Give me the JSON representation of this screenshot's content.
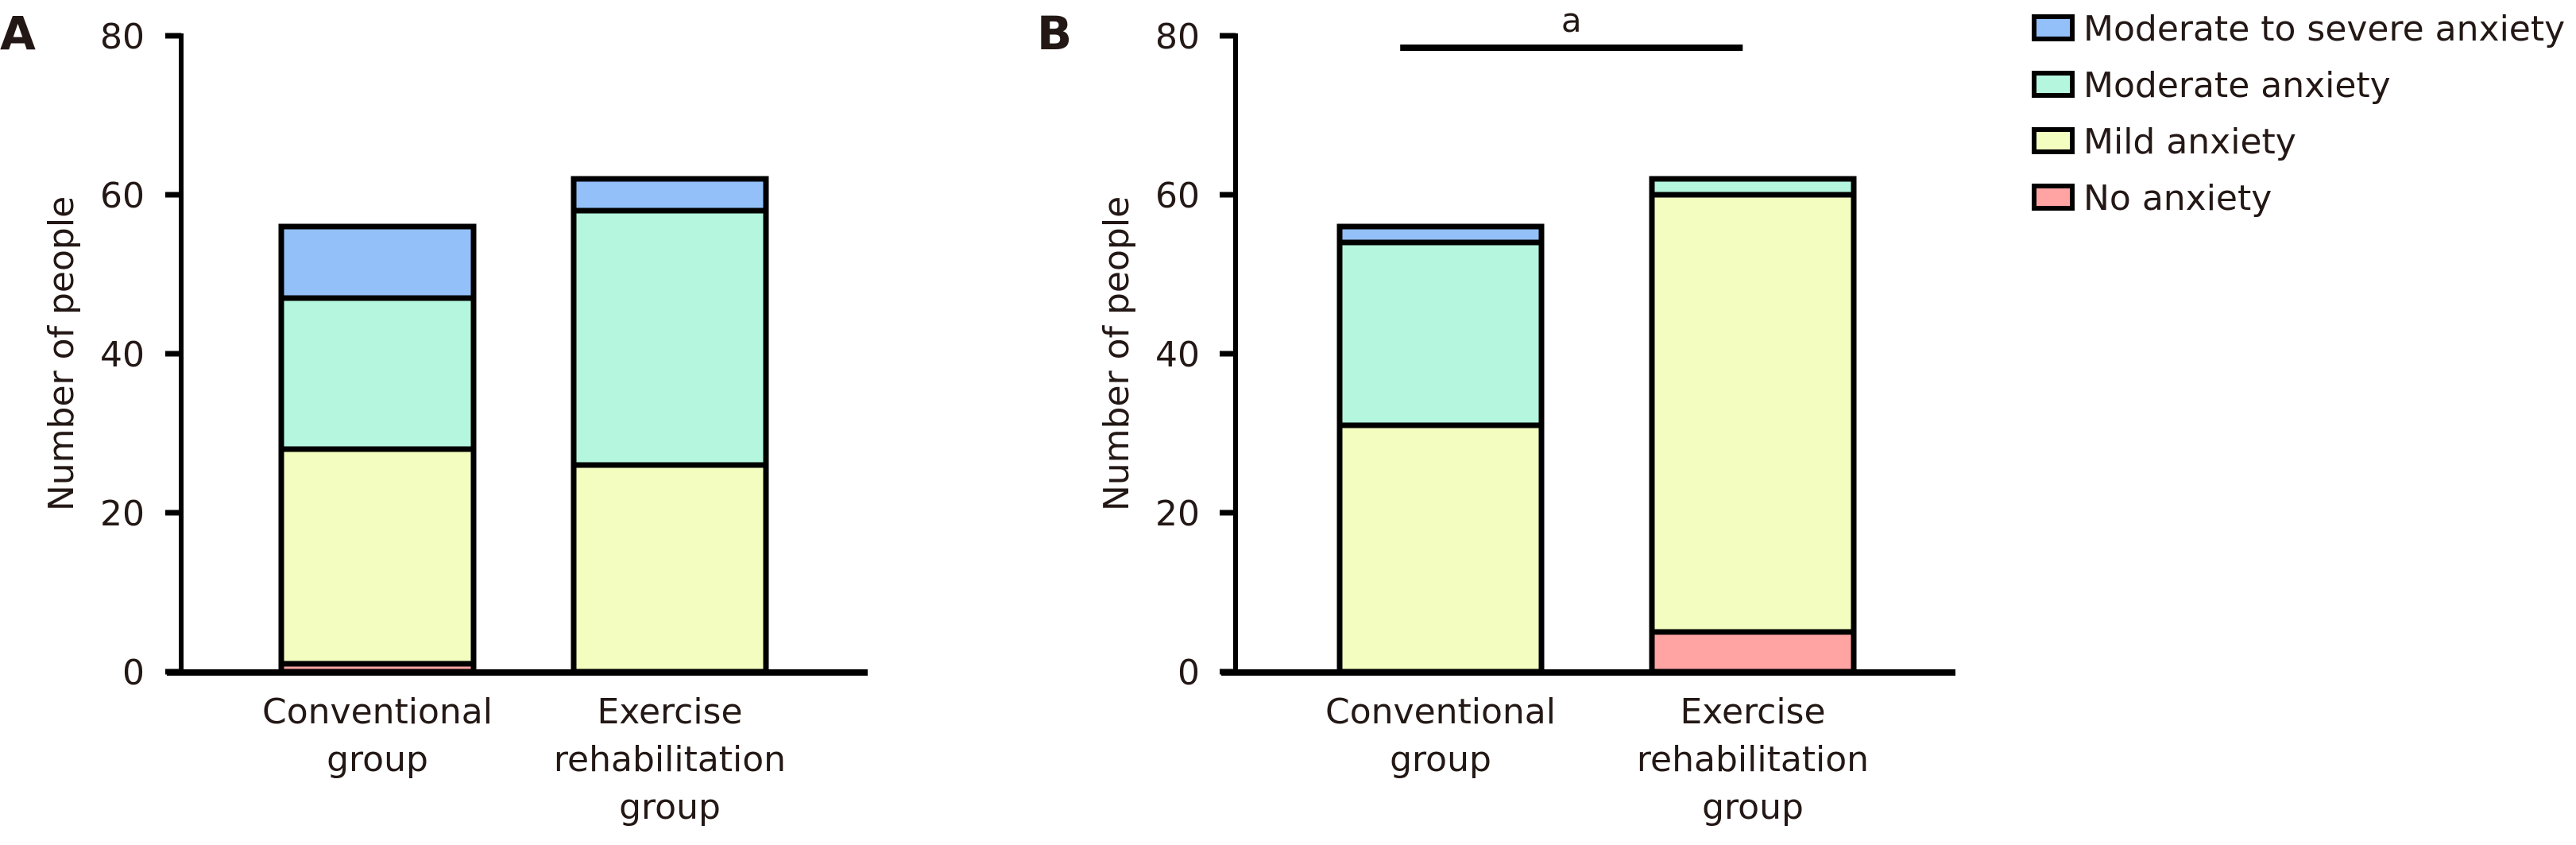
{
  "chart_data": [
    {
      "type": "bar",
      "stacked": true,
      "panel_label": "A",
      "title": "",
      "xlabel": "",
      "ylabel": "Number of people",
      "ylim": [
        0,
        80
      ],
      "yticks": [
        0,
        20,
        40,
        60,
        80
      ],
      "categories": [
        [
          "Conventional",
          "group"
        ],
        [
          "Exercise",
          "rehabilitation",
          "group"
        ]
      ],
      "series": [
        {
          "name": "No anxiety",
          "color": "#ffa3a3",
          "values": [
            1,
            0
          ]
        },
        {
          "name": "Mild anxiety",
          "color": "#f4fdc0",
          "values": [
            27,
            26
          ]
        },
        {
          "name": "Moderate anxiety",
          "color": "#b5f6df",
          "values": [
            19,
            32
          ]
        },
        {
          "name": "Moderate to severe anxiety",
          "color": "#93c0f9",
          "values": [
            9,
            4
          ]
        }
      ],
      "totals": [
        56,
        62
      ],
      "annotation": null
    },
    {
      "type": "bar",
      "stacked": true,
      "panel_label": "B",
      "title": "",
      "xlabel": "",
      "ylabel": "Number of people",
      "ylim": [
        0,
        80
      ],
      "yticks": [
        0,
        20,
        40,
        60,
        80
      ],
      "categories": [
        [
          "Conventional",
          "group"
        ],
        [
          "Exercise",
          "rehabilitation",
          "group"
        ]
      ],
      "series": [
        {
          "name": "No anxiety",
          "color": "#ffa3a3",
          "values": [
            0,
            5
          ]
        },
        {
          "name": "Mild anxiety",
          "color": "#f4fdc0",
          "values": [
            31,
            55
          ]
        },
        {
          "name": "Moderate anxiety",
          "color": "#b5f6df",
          "values": [
            23,
            2
          ]
        },
        {
          "name": "Moderate to severe anxiety",
          "color": "#93c0f9",
          "values": [
            2,
            0
          ]
        }
      ],
      "totals": [
        56,
        62
      ],
      "annotation": {
        "text": "a",
        "type": "significance-bracket",
        "between": [
          0,
          1
        ]
      }
    }
  ],
  "legend": {
    "placement": "top-right",
    "items": [
      {
        "label": "Moderate to severe anxiety",
        "color": "#93c0f9"
      },
      {
        "label": "Moderate anxiety",
        "color": "#b5f6df"
      },
      {
        "label": "Mild anxiety",
        "color": "#f4fdc0"
      },
      {
        "label": "No anxiety",
        "color": "#ffa3a3"
      }
    ]
  }
}
